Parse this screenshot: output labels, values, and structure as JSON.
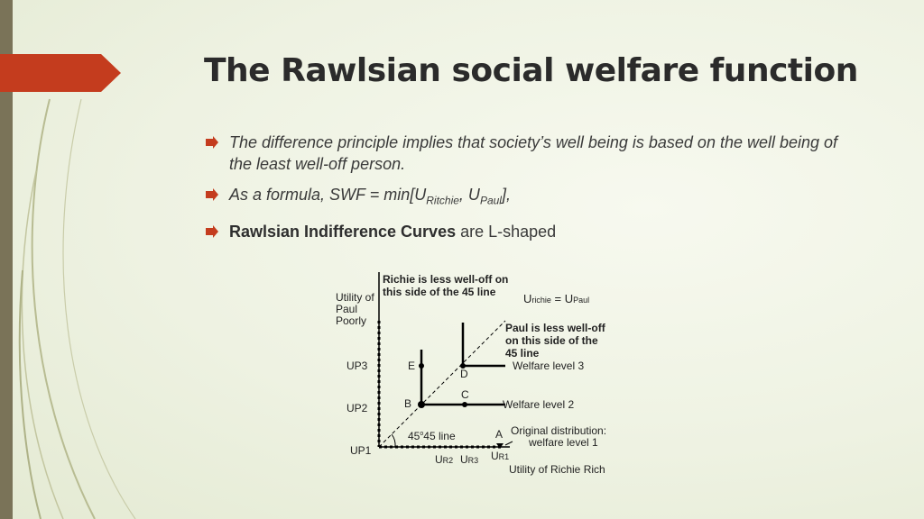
{
  "title": "The Rawlsian social welfare function",
  "bullets": {
    "b1": "The difference principle implies that society’s well being is based on the well being of the least well-off person.",
    "b2": {
      "prefix": "As a formula, SWF = min[U",
      "sub1": "Ritchie",
      "mid": ", U",
      "sub2": "Paul",
      "suffix": "],"
    },
    "b3": {
      "bold": "Rawlsian Indifference Curves",
      "rest": " are L-shaped"
    }
  },
  "diagram": {
    "y_axis_label": [
      "Utility of",
      "Paul",
      "Poorly"
    ],
    "x_axis_label": "Utility of Richie Rich",
    "y_ticks": [
      "UP3",
      "UP2",
      "UP1"
    ],
    "x_ticks": {
      "ur2_main": "U",
      "ur2_sub": "R2",
      "ur3_main": "U",
      "ur3_sub": "R3",
      "ur1_main": "U",
      "ur1_sub": "R1"
    },
    "points": [
      "E",
      "D",
      "B",
      "C",
      "A"
    ],
    "richie_note": [
      "Richie is less well-off on",
      "this side of the 45 line"
    ],
    "paul_note": [
      "Paul is less well-off",
      "on this side of the",
      "45 line"
    ],
    "equality": {
      "u1": "U",
      "s1": "richie",
      "eq": " = ",
      "u2": "U",
      "s2": "Paul"
    },
    "welfare_labels": [
      "Welfare level 3",
      "Welfare level 2"
    ],
    "original": [
      "Original distribution:",
      "welfare level 1"
    ],
    "line45": "45 line",
    "degree": "o",
    "colors": {
      "line": "#000000",
      "text": "#222222"
    }
  },
  "colors": {
    "accent": "#c43c1e",
    "side_bar": "#7a7358",
    "swoosh": "#b7ba8f"
  }
}
